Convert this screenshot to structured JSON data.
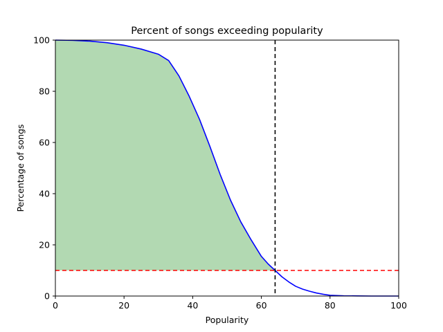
{
  "chart_data": {
    "type": "line",
    "title": "Percent of songs exceeding popularity",
    "xlabel": "Popularity",
    "ylabel": "Percentage of songs",
    "xlim": [
      0,
      100
    ],
    "ylim": [
      0,
      100
    ],
    "xticks": [
      "0",
      "20",
      "40",
      "60",
      "80",
      "100"
    ],
    "yticks": [
      "0",
      "20",
      "40",
      "60",
      "80",
      "100"
    ],
    "grid": false,
    "legend": "none",
    "series": [
      {
        "x": [
          0,
          5,
          10,
          15,
          20,
          25,
          30,
          33,
          36,
          39,
          42,
          45,
          48,
          51,
          54,
          57,
          60,
          62,
          64,
          66,
          68,
          70,
          72,
          74,
          76,
          78,
          80,
          84,
          88,
          92,
          96,
          100
        ],
        "y": [
          100,
          99.9,
          99.6,
          99.0,
          98.0,
          96.5,
          94.5,
          92.0,
          86.0,
          78.0,
          69.0,
          58.5,
          47.5,
          37.5,
          29.0,
          22.0,
          15.5,
          12.5,
          10.0,
          7.5,
          5.5,
          3.8,
          2.7,
          1.9,
          1.2,
          0.7,
          0.3,
          0.1,
          0.05,
          0.0,
          0.0,
          0.0
        ],
        "color": "#0000ff"
      }
    ],
    "fill": {
      "from_x": 0,
      "to_x": 64,
      "down_to_y": 10,
      "color": "#b2d9b2"
    },
    "vline": {
      "x": 64,
      "color": "#000000",
      "style": "dashed"
    },
    "hline": {
      "y": 10,
      "color": "#ff0000",
      "style": "dashed"
    }
  }
}
